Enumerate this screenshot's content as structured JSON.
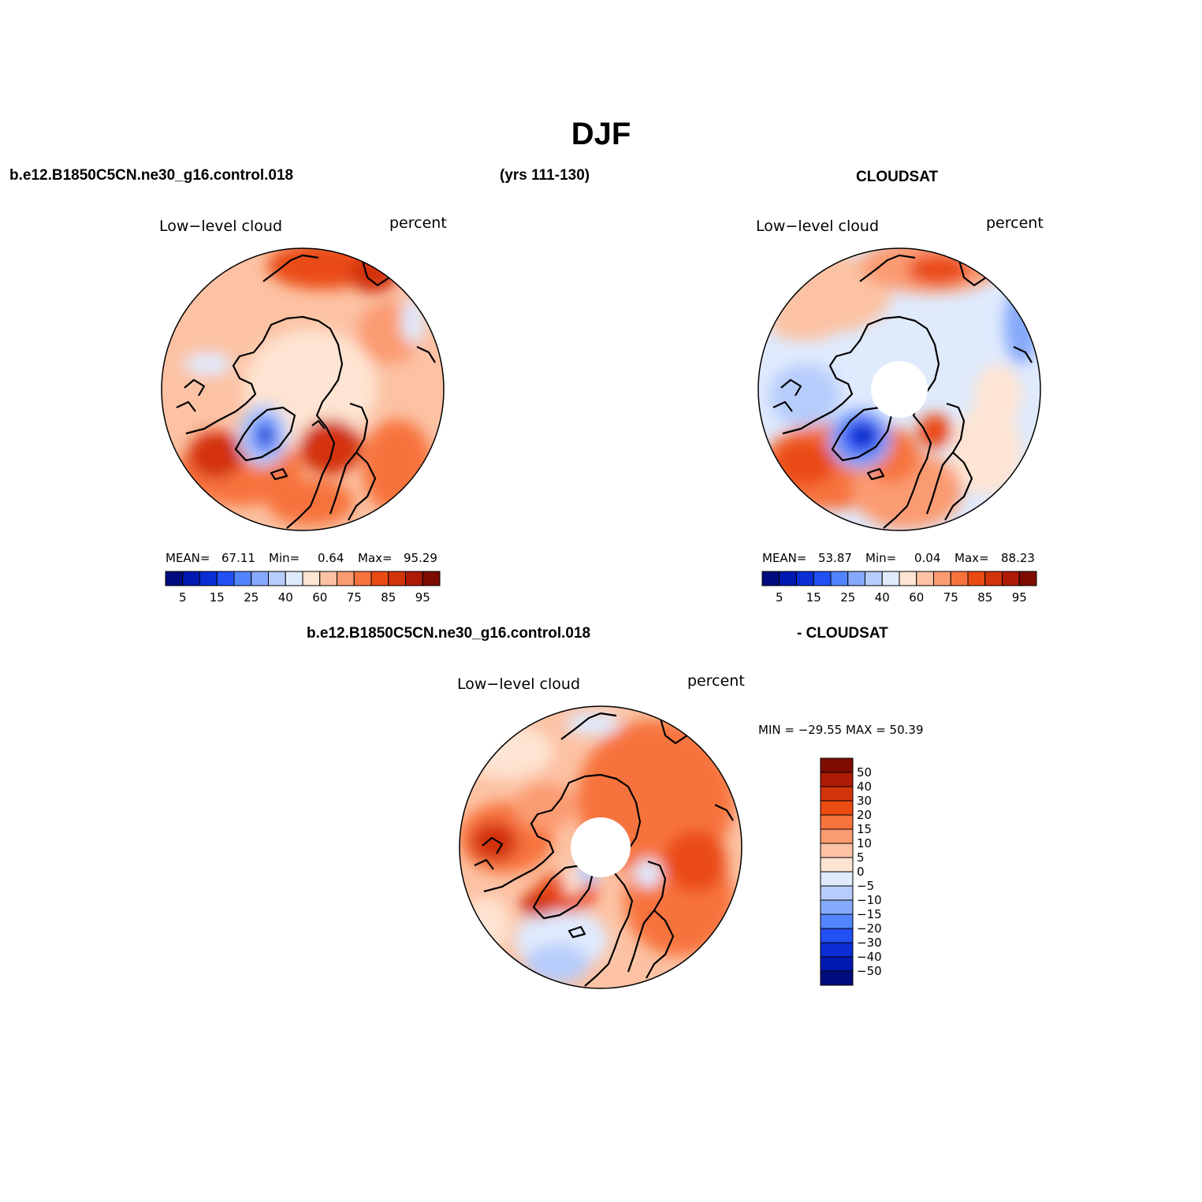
{
  "figure": {
    "title": "DJF",
    "top_left": "b.e12.B1850C5CN.ne30_g16.control.018",
    "top_center": "(yrs 111-130)",
    "top_right": "CLOUDSAT",
    "bottom_left": "b.e12.B1850C5CN.ne30_g16.control.018",
    "bottom_right": "- CLOUDSAT"
  },
  "panels": {
    "model": {
      "left_label": "Low−level cloud",
      "right_label": "percent",
      "mean_label": "MEAN=",
      "mean": "67.11",
      "min_label": "Min=",
      "min": "0.64",
      "max_label": "Max=",
      "max": "95.29",
      "tick_labels": [
        "5",
        "15",
        "25",
        "40",
        "60",
        "75",
        "85",
        "95"
      ]
    },
    "obs": {
      "left_label": "Low−level cloud",
      "right_label": "percent",
      "mean_label": "MEAN=",
      "mean": "53.87",
      "min_label": "Min=",
      "min": "0.04",
      "max_label": "Max=",
      "max": "88.23",
      "tick_labels": [
        "5",
        "15",
        "25",
        "40",
        "60",
        "75",
        "85",
        "95"
      ]
    },
    "diff": {
      "left_label": "Low−level cloud",
      "right_label": "percent",
      "minmax_text": "MIN = −29.55 MAX =  50.39",
      "tick_labels": [
        "50",
        "40",
        "30",
        "20",
        "15",
        "10",
        "5",
        "0",
        "−5",
        "−10",
        "−15",
        "−20",
        "−30",
        "−40",
        "−50"
      ]
    }
  },
  "colors": {
    "abs_scale": [
      "#000c7d",
      "#0019b1",
      "#0a2ed4",
      "#2250f5",
      "#5384ff",
      "#86a9fb",
      "#b6ccfb",
      "#dfeafd",
      "#fee4d2",
      "#fcc2a3",
      "#fb9b72",
      "#f7733e",
      "#ea4b12",
      "#d3330a",
      "#ae1b05",
      "#7d0d00"
    ],
    "diff_scale": [
      "#7d0d00",
      "#ae1b05",
      "#d3330a",
      "#ea4b12",
      "#f7733e",
      "#fb9b72",
      "#fcc2a3",
      "#fee4d2",
      "#dfeafd",
      "#b6ccfb",
      "#86a9fb",
      "#5384ff",
      "#2250f5",
      "#0a2ed4",
      "#0019b1",
      "#000c7d"
    ]
  }
}
